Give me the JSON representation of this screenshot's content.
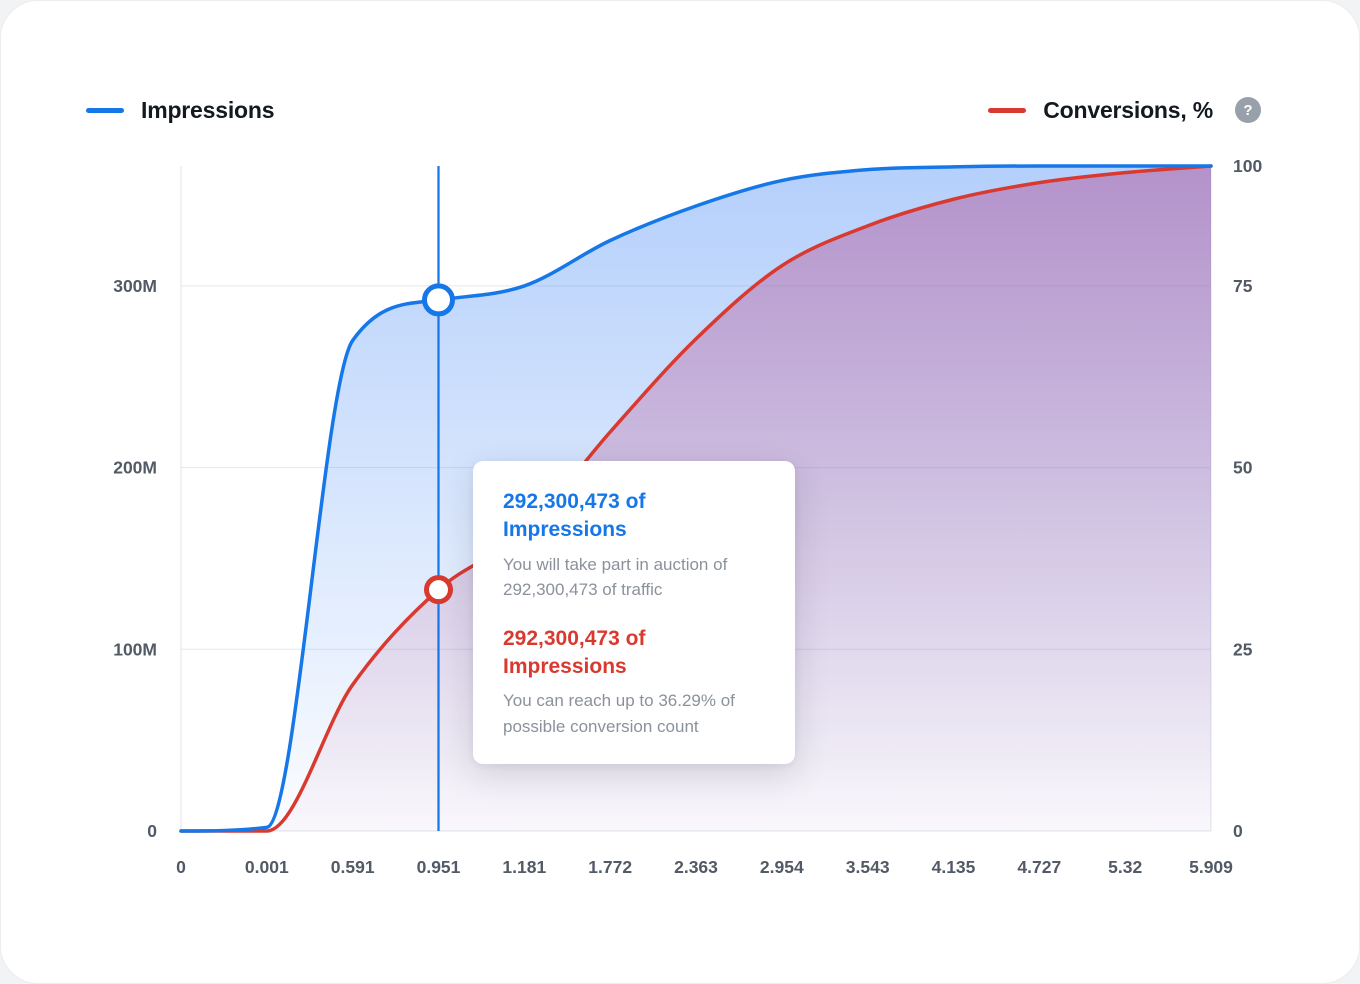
{
  "legend": {
    "impressions_label": "Impressions",
    "conversions_label": "Conversions, %",
    "help_glyph": "?"
  },
  "axes": {
    "left_ticks": [
      {
        "label": "300M",
        "value": 300
      },
      {
        "label": "200M",
        "value": 200
      },
      {
        "label": "100M",
        "value": 100
      },
      {
        "label": "0",
        "value": 0
      }
    ],
    "right_ticks": [
      "100",
      "75",
      "50",
      "25",
      "0"
    ],
    "x_ticks": [
      "0",
      "0.001",
      "0.591",
      "0.951",
      "1.181",
      "1.772",
      "2.363",
      "2.954",
      "3.543",
      "4.135",
      "4.727",
      "5.32",
      "5.909"
    ]
  },
  "tooltip": {
    "impressions_title": "292,300,473 of Impressions",
    "impressions_body": "You will take part in auction of 292,300,473 of traffic",
    "conversions_title": "292,300,473 of Impressions",
    "conversions_body": "You can reach up to 36.29% of possible conversion count"
  },
  "colors": {
    "impressions": "#1577E8",
    "conversions": "#D93A30",
    "grid": "#E6E8EE",
    "axis_border": "#DFE3EA",
    "axis_text": "#525A66",
    "body_text": "#8B919B",
    "legend_text": "#14181F",
    "help_bg": "#98A0AA"
  },
  "chart_data": {
    "type": "area",
    "title": "",
    "x_spacing": "even",
    "x_tick_labels": [
      "0",
      "0.001",
      "0.591",
      "0.951",
      "1.181",
      "1.772",
      "2.363",
      "2.954",
      "3.543",
      "4.135",
      "4.727",
      "5.32",
      "5.909"
    ],
    "series": [
      {
        "name": "Impressions",
        "axis": "left",
        "unit": "M",
        "color": "#1577E8",
        "values": [
          0,
          2,
          270,
          292.3,
          300,
          325,
          344,
          358,
          364,
          365.5,
          366,
          366,
          366
        ]
      },
      {
        "name": "Conversions, %",
        "axis": "right",
        "unit": "%",
        "color": "#D93A30",
        "values": [
          0,
          0,
          22,
          36.29,
          45,
          60,
          74,
          85,
          91,
          95,
          97.5,
          99,
          100
        ]
      }
    ],
    "left_axis": {
      "label_ticks": [
        0,
        100,
        200,
        300
      ],
      "unit": "M",
      "max": 366
    },
    "right_axis": {
      "label_ticks": [
        0,
        25,
        50,
        75,
        100
      ],
      "max": 100
    },
    "grid": "horizontal",
    "legend_position": "top",
    "selected_point": {
      "x_label": "0.951",
      "x_index": 3,
      "impressions": 292300473,
      "conversions_pct": 36.29
    }
  }
}
